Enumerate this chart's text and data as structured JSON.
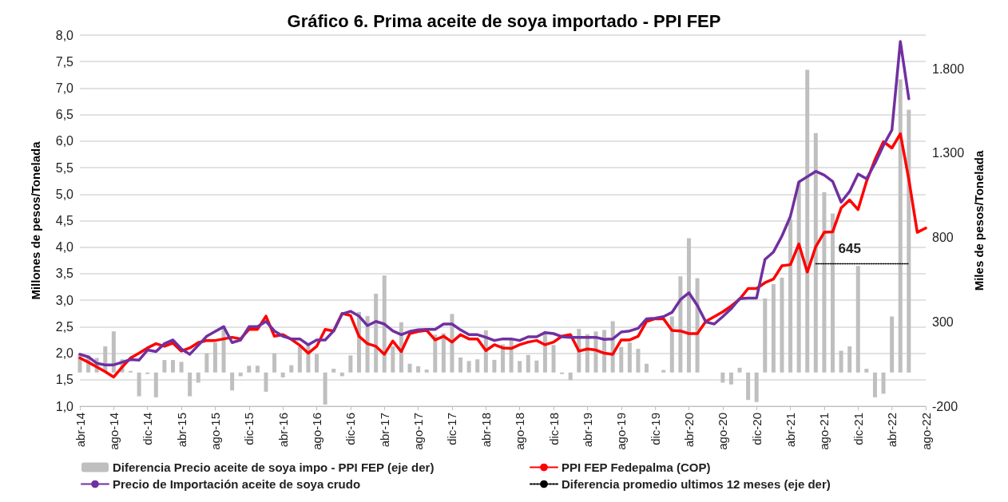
{
  "chart_data": {
    "type": "line",
    "title": "Gráfico 6. Prima aceite de soya importado - PPI FEP",
    "ylabel": "Millones de pesos/Tonelada",
    "y2label": "Miles de pesos/Tonelada",
    "categories": [
      "abr-14",
      null,
      null,
      null,
      "ago-14",
      null,
      null,
      null,
      "dic-14",
      null,
      null,
      null,
      "abr-15",
      null,
      null,
      null,
      "ago-15",
      null,
      null,
      null,
      "dic-15",
      null,
      null,
      null,
      "abr-16",
      null,
      null,
      null,
      "ago-16",
      null,
      null,
      null,
      "dic-16",
      null,
      null,
      null,
      "abr-17",
      null,
      null,
      null,
      "ago-17",
      null,
      null,
      null,
      "dic-17",
      null,
      null,
      null,
      "abr-18",
      null,
      null,
      null,
      "ago-18",
      null,
      null,
      null,
      "dic-18",
      null,
      null,
      null,
      "abr-19",
      null,
      null,
      null,
      "ago-19",
      null,
      null,
      null,
      "dic-19",
      null,
      null,
      null,
      "abr-20",
      null,
      null,
      null,
      "ago-20",
      null,
      null,
      null,
      "dic-20",
      null,
      null,
      null,
      "abr-21",
      null,
      null,
      null,
      "ago-21",
      null,
      null,
      null,
      "dic-21",
      null,
      null,
      null,
      "abr-22",
      null,
      null,
      null,
      "ago-22"
    ],
    "series": [
      {
        "name": "Diferencia Precio aceite de soya impo - PPI FEP (eje der)",
        "type": "bar",
        "axis": "y2",
        "color": "#bfbfbf",
        "values": [
          109,
          101,
          86,
          155,
          244,
          78,
          9,
          -141,
          -9,
          -147,
          74,
          74,
          63,
          -141,
          -60,
          114,
          178,
          278,
          -106,
          -22,
          40,
          40,
          -114,
          114,
          -29,
          43,
          155,
          163,
          109,
          -190,
          22,
          -22,
          101,
          359,
          335,
          467,
          575,
          155,
          298,
          52,
          37,
          17,
          224,
          232,
          347,
          89,
          68,
          78,
          250,
          75,
          166,
          194,
          68,
          104,
          71,
          232,
          163,
          -9,
          -45,
          258,
          227,
          243,
          252,
          304,
          151,
          178,
          140,
          52,
          null,
          15,
          332,
          570,
          796,
          559,
          null,
          null,
          -60,
          -71,
          28,
          -163,
          -175,
          439,
          524,
          562,
          910,
          1127,
          1794,
          1419,
          1069,
          943,
          129,
          155,
          631,
          22,
          -147,
          -126,
          332,
          1737,
          1558,
          null,
          null
        ]
      },
      {
        "name": "PPI FEP Fedepalma (COP)",
        "color": "#ff0000",
        "values": [
          1.91,
          1.83,
          1.74,
          1.65,
          1.55,
          1.74,
          1.91,
          2.0,
          2.1,
          2.18,
          2.13,
          2.19,
          2.04,
          2.1,
          2.2,
          2.24,
          2.24,
          2.27,
          2.3,
          2.27,
          2.45,
          2.45,
          2.7,
          2.32,
          2.35,
          2.26,
          2.15,
          2.0,
          2.13,
          2.45,
          2.42,
          2.75,
          2.71,
          2.32,
          2.18,
          2.13,
          1.98,
          2.23,
          2.03,
          2.37,
          2.41,
          2.43,
          2.25,
          2.32,
          2.21,
          2.35,
          2.27,
          2.27,
          2.05,
          2.16,
          2.1,
          2.09,
          2.16,
          2.21,
          2.24,
          2.16,
          2.21,
          2.32,
          2.35,
          2.04,
          2.08,
          2.06,
          2.0,
          1.98,
          2.25,
          2.25,
          2.32,
          2.6,
          2.65,
          2.65,
          2.43,
          2.42,
          2.37,
          2.37,
          2.6,
          2.69,
          2.78,
          2.89,
          3.02,
          3.22,
          3.22,
          3.33,
          3.4,
          3.65,
          3.67,
          4.06,
          3.53,
          4.01,
          4.28,
          4.29,
          4.74,
          4.89,
          4.71,
          5.24,
          5.65,
          5.99,
          5.87,
          6.14,
          5.28,
          4.28,
          4.36
        ]
      },
      {
        "name": "Precio de Importación aceite de soya crudo",
        "color": "#7030a0",
        "values": [
          1.98,
          1.93,
          1.81,
          1.78,
          1.78,
          1.83,
          1.88,
          1.87,
          2.06,
          2.03,
          2.18,
          2.25,
          2.08,
          1.98,
          2.15,
          2.32,
          2.41,
          2.5,
          2.2,
          2.25,
          2.5,
          2.5,
          2.6,
          2.42,
          2.32,
          2.27,
          2.27,
          2.16,
          2.25,
          2.25,
          2.42,
          2.74,
          2.79,
          2.7,
          2.52,
          2.6,
          2.55,
          2.42,
          2.35,
          2.41,
          2.44,
          2.45,
          2.45,
          2.55,
          2.55,
          2.44,
          2.35,
          2.35,
          2.3,
          2.24,
          2.27,
          2.27,
          2.24,
          2.31,
          2.31,
          2.39,
          2.37,
          2.31,
          2.3,
          2.3,
          2.3,
          2.3,
          2.26,
          2.27,
          2.4,
          2.42,
          2.47,
          2.65,
          2.66,
          2.69,
          2.77,
          3.01,
          3.14,
          2.9,
          2.59,
          2.55,
          2.69,
          2.84,
          3.03,
          3.04,
          3.04,
          3.77,
          3.91,
          4.21,
          4.58,
          5.23,
          5.33,
          5.43,
          5.36,
          5.24,
          4.85,
          5.05,
          5.38,
          5.29,
          5.58,
          5.92,
          6.21,
          7.88,
          6.8,
          null,
          null
        ]
      },
      {
        "name": "Diferencia promedio ultimos 12 meses (eje der)",
        "axis": "y2",
        "color": "#000000",
        "line_style": "dotted",
        "values": [
          null,
          null,
          null,
          null,
          null,
          null,
          null,
          null,
          null,
          null,
          null,
          null,
          null,
          null,
          null,
          null,
          null,
          null,
          null,
          null,
          null,
          null,
          null,
          null,
          null,
          null,
          null,
          null,
          null,
          null,
          null,
          null,
          null,
          null,
          null,
          null,
          null,
          null,
          null,
          null,
          null,
          null,
          null,
          null,
          null,
          null,
          null,
          null,
          null,
          null,
          null,
          null,
          null,
          null,
          null,
          null,
          null,
          null,
          null,
          null,
          null,
          null,
          null,
          null,
          null,
          null,
          null,
          null,
          null,
          null,
          null,
          null,
          null,
          null,
          null,
          null,
          null,
          null,
          null,
          null,
          null,
          null,
          null,
          null,
          null,
          null,
          null,
          645,
          645,
          645,
          645,
          645,
          645,
          645,
          645,
          645,
          645,
          645,
          645,
          null,
          null
        ],
        "value_labels": [
          null,
          null,
          null,
          null,
          null,
          null,
          null,
          null,
          null,
          null,
          null,
          null,
          null,
          null,
          null,
          null,
          null,
          null,
          null,
          null,
          null,
          null,
          null,
          null,
          null,
          null,
          null,
          null,
          null,
          null,
          null,
          null,
          null,
          null,
          null,
          null,
          null,
          null,
          null,
          null,
          null,
          null,
          null,
          null,
          null,
          null,
          null,
          null,
          null,
          null,
          null,
          null,
          null,
          null,
          null,
          null,
          null,
          null,
          null,
          null,
          null,
          null,
          null,
          null,
          null,
          null,
          null,
          null,
          null,
          null,
          null,
          null,
          null,
          null,
          null,
          null,
          null,
          null,
          null,
          null,
          null,
          null,
          null,
          null,
          null,
          null,
          null,
          null,
          null,
          null,
          null,
          "645",
          null,
          null,
          null,
          null,
          null,
          null,
          null,
          null,
          null
        ]
      }
    ],
    "ylim": [
      1.0,
      8.0
    ],
    "yticks": [
      {
        "value": 1.0,
        "label": "1,0"
      },
      {
        "value": 1.5,
        "label": "1,5"
      },
      {
        "value": 2.0,
        "label": "2,0"
      },
      {
        "value": 2.5,
        "label": "2,5"
      },
      {
        "value": 3.0,
        "label": "3,0"
      },
      {
        "value": 3.5,
        "label": "3,5"
      },
      {
        "value": 4.0,
        "label": "4,0"
      },
      {
        "value": 4.5,
        "label": "4,5"
      },
      {
        "value": 5.0,
        "label": "5,0"
      },
      {
        "value": 5.5,
        "label": "5,5"
      },
      {
        "value": 6.0,
        "label": "6,0"
      },
      {
        "value": 6.5,
        "label": "6,5"
      },
      {
        "value": 7.0,
        "label": "7,0"
      },
      {
        "value": 7.5,
        "label": "7,5"
      },
      {
        "value": 8.0,
        "label": "8,0"
      }
    ],
    "y2lim": [
      -200,
      2000
    ],
    "y2ticks": [
      -200,
      300,
      800,
      {
        "value": 1300,
        "label": "1.300"
      },
      {
        "value": 1800,
        "label": "1.800"
      }
    ],
    "grid": "y",
    "legend": "bottom",
    "marker": "none",
    "line_style": "solid"
  }
}
